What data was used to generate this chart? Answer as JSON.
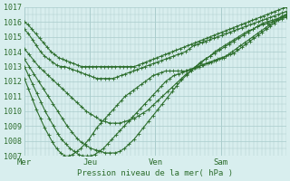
{
  "xlabel": "Pression niveau de la mer( hPa )",
  "ylim": [
    1007,
    1017
  ],
  "yticks": [
    1007,
    1008,
    1009,
    1010,
    1011,
    1012,
    1013,
    1014,
    1015,
    1016,
    1017
  ],
  "bg_color": "#d8eeee",
  "grid_color": "#aacccc",
  "line_color": "#2d6e2d",
  "day_labels": [
    "Mer",
    "Jeu",
    "Ven",
    "Sam"
  ],
  "day_positions": [
    0,
    64,
    128,
    192
  ],
  "total_points": 256,
  "lines": [
    [
      1016.0,
      1015.8,
      1015.5,
      1015.2,
      1014.9,
      1014.6,
      1014.3,
      1014.0,
      1013.8,
      1013.6,
      1013.5,
      1013.4,
      1013.3,
      1013.2,
      1013.1,
      1013.0,
      1013.0,
      1013.0,
      1013.0,
      1013.0,
      1013.0,
      1013.0,
      1013.0,
      1013.0,
      1013.0,
      1013.0,
      1013.0,
      1013.0,
      1013.0,
      1013.0,
      1013.1,
      1013.2,
      1013.3,
      1013.4,
      1013.5,
      1013.6,
      1013.7,
      1013.8,
      1013.9,
      1014.0,
      1014.1,
      1014.2,
      1014.3,
      1014.4,
      1014.5,
      1014.6,
      1014.7,
      1014.8,
      1014.9,
      1015.0,
      1015.1,
      1015.2,
      1015.3,
      1015.4,
      1015.5,
      1015.6,
      1015.7,
      1015.8,
      1015.9,
      1016.0,
      1016.1,
      1016.2,
      1016.3,
      1016.4,
      1016.5,
      1016.6,
      1016.7,
      1016.8,
      1016.9,
      1017.0
    ],
    [
      1015.5,
      1015.2,
      1014.8,
      1014.4,
      1014.0,
      1013.7,
      1013.5,
      1013.3,
      1013.1,
      1013.0,
      1013.0,
      1012.9,
      1012.8,
      1012.7,
      1012.6,
      1012.5,
      1012.4,
      1012.3,
      1012.2,
      1012.2,
      1012.2,
      1012.2,
      1012.2,
      1012.3,
      1012.4,
      1012.5,
      1012.6,
      1012.7,
      1012.8,
      1012.9,
      1013.0,
      1013.1,
      1013.2,
      1013.3,
      1013.4,
      1013.5,
      1013.6,
      1013.7,
      1013.8,
      1013.9,
      1014.0,
      1014.2,
      1014.4,
      1014.5,
      1014.6,
      1014.7,
      1014.8,
      1014.9,
      1015.0,
      1015.1,
      1015.2,
      1015.3,
      1015.4,
      1015.5,
      1015.6,
      1015.7,
      1015.8,
      1015.9,
      1016.0,
      1016.1,
      1016.2,
      1016.3,
      1016.4,
      1016.5,
      1016.6,
      1016.7
    ],
    [
      1014.2,
      1013.8,
      1013.4,
      1013.0,
      1012.7,
      1012.4,
      1012.1,
      1011.8,
      1011.5,
      1011.2,
      1010.9,
      1010.6,
      1010.3,
      1010.0,
      1009.8,
      1009.6,
      1009.4,
      1009.3,
      1009.2,
      1009.2,
      1009.2,
      1009.3,
      1009.4,
      1009.5,
      1009.7,
      1009.9,
      1010.1,
      1010.4,
      1010.7,
      1011.0,
      1011.3,
      1011.6,
      1011.9,
      1012.2,
      1012.5,
      1012.7,
      1013.0,
      1013.2,
      1013.5,
      1013.7,
      1014.0,
      1014.2,
      1014.4,
      1014.6,
      1014.8,
      1015.0,
      1015.2,
      1015.4,
      1015.5,
      1015.7,
      1015.9,
      1016.0,
      1016.1,
      1016.2,
      1016.3,
      1016.4
    ],
    [
      1013.5,
      1013.0,
      1012.5,
      1012.0,
      1011.5,
      1011.0,
      1010.5,
      1010.0,
      1009.5,
      1009.0,
      1008.6,
      1008.2,
      1007.9,
      1007.7,
      1007.5,
      1007.4,
      1007.3,
      1007.2,
      1007.2,
      1007.2,
      1007.3,
      1007.5,
      1007.8,
      1008.1,
      1008.5,
      1008.9,
      1009.3,
      1009.7,
      1010.1,
      1010.5,
      1010.9,
      1011.3,
      1011.7,
      1012.1,
      1012.4,
      1012.7,
      1013.0,
      1013.3,
      1013.5,
      1013.7,
      1013.9,
      1014.1,
      1014.3,
      1014.5,
      1014.7,
      1014.9,
      1015.1,
      1015.3,
      1015.5,
      1015.7,
      1015.8,
      1015.9,
      1016.0,
      1016.1,
      1016.2,
      1016.3
    ],
    [
      1013.0,
      1012.4,
      1011.8,
      1011.2,
      1010.6,
      1010.0,
      1009.5,
      1009.0,
      1008.5,
      1008.1,
      1007.8,
      1007.5,
      1007.3,
      1007.1,
      1007.0,
      1007.0,
      1007.0,
      1007.1,
      1007.3,
      1007.5,
      1007.8,
      1008.1,
      1008.4,
      1008.7,
      1009.0,
      1009.3,
      1009.6,
      1009.9,
      1010.2,
      1010.5,
      1010.8,
      1011.1,
      1011.4,
      1011.7,
      1012.0,
      1012.2,
      1012.4,
      1012.5,
      1012.6,
      1012.7,
      1012.8,
      1012.9,
      1013.0,
      1013.1,
      1013.2,
      1013.3,
      1013.4,
      1013.5,
      1013.6,
      1013.8,
      1014.0,
      1014.2,
      1014.4,
      1014.6,
      1014.8,
      1015.0,
      1015.2,
      1015.4,
      1015.6,
      1015.8,
      1016.0,
      1016.2,
      1016.4,
      1016.5
    ],
    [
      1012.2,
      1011.5,
      1010.8,
      1010.1,
      1009.5,
      1008.9,
      1008.4,
      1007.9,
      1007.5,
      1007.2,
      1007.0,
      1007.0,
      1007.1,
      1007.3,
      1007.5,
      1007.8,
      1008.1,
      1008.5,
      1008.9,
      1009.2,
      1009.5,
      1009.8,
      1010.1,
      1010.4,
      1010.7,
      1011.0,
      1011.2,
      1011.4,
      1011.6,
      1011.8,
      1012.0,
      1012.2,
      1012.4,
      1012.5,
      1012.6,
      1012.7,
      1012.7,
      1012.7,
      1012.7,
      1012.7,
      1012.7,
      1012.8,
      1012.9,
      1013.0,
      1013.1,
      1013.2,
      1013.3,
      1013.4,
      1013.5,
      1013.6,
      1013.7,
      1013.8,
      1013.9,
      1014.1,
      1014.3,
      1014.5,
      1014.7,
      1014.9,
      1015.1,
      1015.3,
      1015.5,
      1015.7,
      1015.9,
      1016.1,
      1016.3,
      1016.5
    ]
  ]
}
